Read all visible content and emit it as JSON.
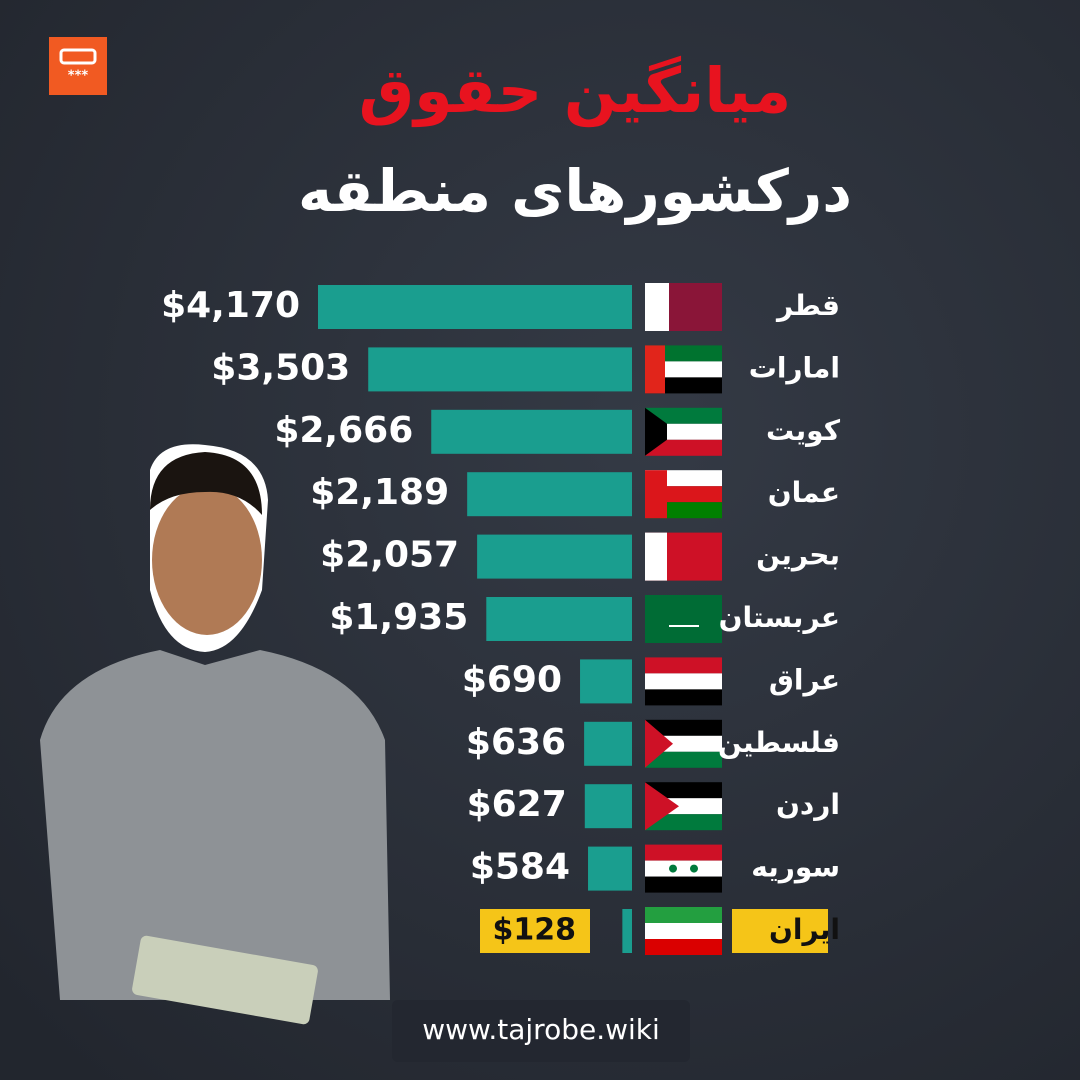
{
  "chart_data": {
    "type": "bar",
    "orientation": "horizontal",
    "title": "میانگین حقوق",
    "subtitle": "درکشورهای منطقه",
    "categories": [
      "قطر",
      "امارات",
      "کویت",
      "عمان",
      "بحرین",
      "عربستان",
      "عراق",
      "فلسطین",
      "اردن",
      "سوریه",
      "ایران"
    ],
    "values": [
      4170,
      3503,
      2666,
      2189,
      2057,
      1935,
      690,
      636,
      627,
      584,
      128
    ],
    "value_labels": [
      "$4,170",
      "$3,503",
      "$2,666",
      "$2,189",
      "$2,057",
      "$1,935",
      "$690",
      "$636",
      "$627",
      "$584",
      "$128"
    ],
    "color": "#1a9e8f",
    "footer": "www.tajrobe.wiki"
  }
}
